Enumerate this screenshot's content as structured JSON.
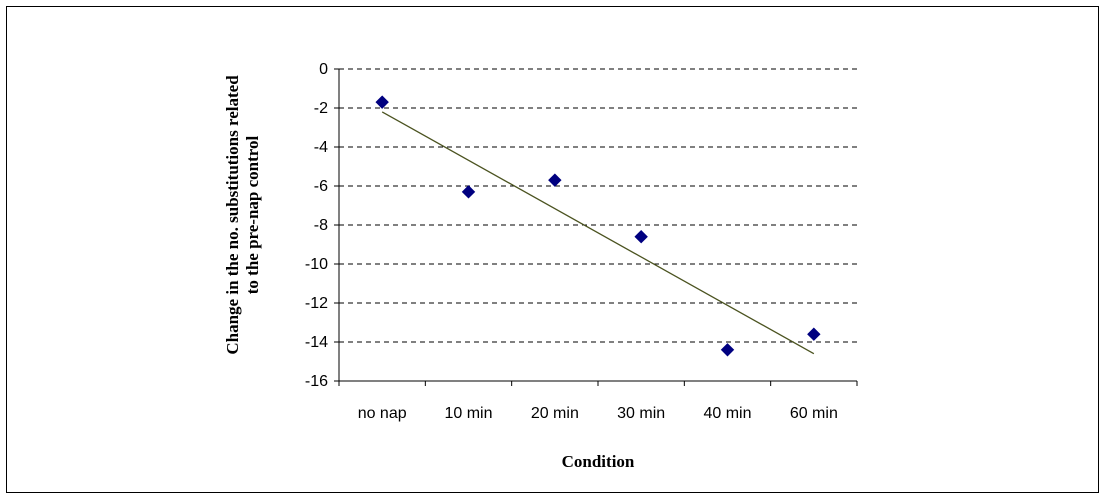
{
  "chart_data": {
    "type": "scatter",
    "title": "",
    "xlabel": "Condition",
    "ylabel_lines": [
      "Change in the no. substitutions related",
      "to the pre-nap control"
    ],
    "categories": [
      "no nap",
      "10 min",
      "20 min",
      "30 min",
      "40 min",
      "60 min"
    ],
    "series": [
      {
        "values": [
          -1.7,
          -6.3,
          -5.7,
          -8.6,
          -14.4,
          -13.6
        ],
        "color": "#000080",
        "marker": "diamond"
      }
    ],
    "trendline": {
      "type": "linear",
      "start": -2.2,
      "end": -14.6,
      "color": "#4b5320"
    },
    "ylim": [
      -16,
      0
    ],
    "yticks": [
      0,
      -2,
      -4,
      -6,
      -8,
      -10,
      -12,
      -14,
      -16
    ],
    "grid": "horizontal-dashed",
    "legend": "none"
  }
}
